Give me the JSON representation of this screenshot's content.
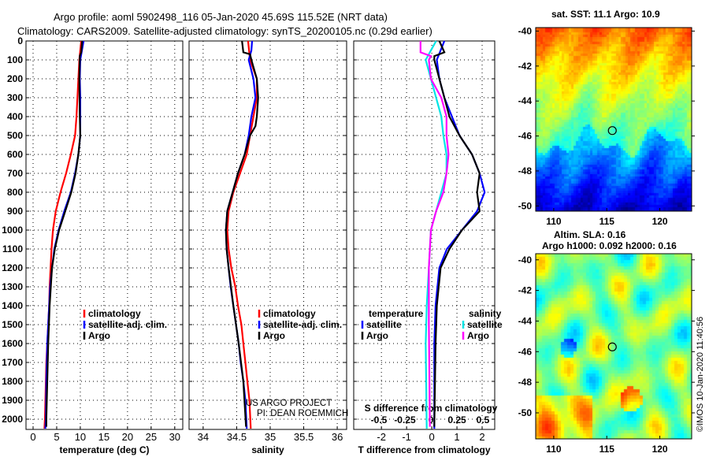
{
  "title_line1": "Argo profile: aoml 5902498_116 05-Jan-2020 45.69S 115.52E (NRT data)",
  "title_line2": "Climatology: CARS2009. Satellite-adjusted climatology: synTS_20200105.nc (0.29d earlier)",
  "credit1": "US ARGO PROJECT",
  "credit2": "PI: DEAN ROEMMICH",
  "watermark": "©IMOS 10-Jan-2020 11:40:56",
  "colors": {
    "climatology": "#ff0000",
    "satellite": "#0000ff",
    "argo": "#000000",
    "sal_satellite": "#00e5e5",
    "sal_argo": "#ff00ff"
  },
  "chart_data": [
    {
      "type": "line",
      "name": "temperature",
      "xlabel": "temperature (deg C)",
      "xlim": [
        -1.5,
        31.7
      ],
      "ylim": [
        0,
        2130
      ],
      "y_reversed": true,
      "xticks": [
        0,
        5,
        10,
        15,
        20,
        25,
        30
      ],
      "yticks": [
        0,
        100,
        200,
        300,
        400,
        500,
        600,
        700,
        800,
        900,
        1000,
        1100,
        1200,
        1300,
        1400,
        1500,
        1600,
        1700,
        1800,
        1900,
        2000
      ],
      "legend": [
        "climatology",
        "satellite-adj. clim.",
        "Argo"
      ],
      "series": [
        {
          "name": "climatology",
          "color": "#ff0000",
          "depth": [
            0,
            100,
            200,
            300,
            400,
            500,
            600,
            700,
            800,
            900,
            1000,
            1100,
            1200,
            1300,
            1400,
            1500,
            1600,
            1700,
            1800,
            1900,
            2000,
            2050
          ],
          "values": [
            10.2,
            9.8,
            9.6,
            9.4,
            9.2,
            8.9,
            8.0,
            7.0,
            5.8,
            4.8,
            4.2,
            3.9,
            3.7,
            3.5,
            3.4,
            3.2,
            3.0,
            2.8,
            2.7,
            2.6,
            2.5,
            2.4
          ]
        },
        {
          "name": "satellite-adj. clim.",
          "color": "#0000ff",
          "depth": [
            0,
            100,
            200,
            300,
            400,
            500,
            600,
            700,
            800,
            900,
            1000,
            1100,
            1200,
            1300,
            1400,
            1500,
            1600,
            1800,
            2000,
            2050
          ],
          "values": [
            10.7,
            10.0,
            9.9,
            10.0,
            10.0,
            10.0,
            9.6,
            8.9,
            8.0,
            6.6,
            5.4,
            4.5,
            4.0,
            3.6,
            3.4,
            3.2,
            3.0,
            2.8,
            2.7,
            2.6
          ]
        },
        {
          "name": "Argo",
          "color": "#000000",
          "depth": [
            0,
            60,
            80,
            100,
            200,
            400,
            500,
            600,
            700,
            800,
            900,
            1000,
            1100,
            1200,
            1400,
            1600,
            1800,
            2000,
            2040
          ],
          "values": [
            10.4,
            10.2,
            9.9,
            9.9,
            9.8,
            9.9,
            10.0,
            9.6,
            9.0,
            8.1,
            6.8,
            5.5,
            4.6,
            4.0,
            3.5,
            3.2,
            3.0,
            2.8,
            2.8
          ]
        }
      ]
    },
    {
      "type": "line",
      "name": "salinity",
      "xlabel": "salinity",
      "xlim": [
        33.79,
        36.14
      ],
      "ylim": [
        0,
        2130
      ],
      "y_reversed": true,
      "xticks": [
        34,
        34.5,
        35,
        35.5,
        36
      ],
      "legend": [
        "climatology",
        "satellite-adj. clim.",
        "Argo"
      ],
      "series": [
        {
          "name": "climatology",
          "color": "#ff0000",
          "depth": [
            0,
            100,
            200,
            300,
            400,
            500,
            600,
            700,
            800,
            900,
            1000,
            1100,
            1200,
            1300,
            1400,
            1500,
            1600,
            1700,
            1800,
            1900,
            2050
          ],
          "values": [
            34.67,
            34.7,
            34.8,
            34.8,
            34.75,
            34.7,
            34.65,
            34.55,
            34.45,
            34.38,
            34.36,
            34.38,
            34.42,
            34.48,
            34.52,
            34.57,
            34.6,
            34.63,
            34.66,
            34.69,
            34.71
          ]
        },
        {
          "name": "satellite-adj. clim.",
          "color": "#0000ff",
          "depth": [
            0,
            50,
            100,
            200,
            300,
            400,
            500,
            600,
            700,
            800,
            900,
            1000,
            1100,
            1200,
            1300,
            1400,
            1500,
            1600,
            1700,
            1800,
            1900,
            2050
          ],
          "values": [
            34.73,
            34.72,
            34.68,
            34.75,
            34.78,
            34.72,
            34.68,
            34.62,
            34.52,
            34.44,
            34.36,
            34.34,
            34.35,
            34.38,
            34.41,
            34.45,
            34.49,
            34.53,
            34.56,
            34.6,
            34.63,
            34.65
          ]
        },
        {
          "name": "Argo",
          "color": "#000000",
          "depth": [
            0,
            60,
            70,
            100,
            200,
            300,
            400,
            450,
            500,
            600,
            700,
            800,
            900,
            1000,
            1100,
            1200,
            1400,
            1600,
            1800,
            2040
          ],
          "values": [
            34.58,
            34.6,
            34.7,
            34.72,
            34.8,
            34.82,
            34.8,
            34.78,
            34.7,
            34.62,
            34.52,
            34.44,
            34.36,
            34.34,
            34.35,
            34.38,
            34.45,
            34.53,
            34.6,
            34.64
          ]
        }
      ]
    },
    {
      "type": "line",
      "name": "difference",
      "xlabel": "T difference from climatology",
      "xlabel2": "S difference from climatology",
      "xlim": [
        -3.1,
        2.5
      ],
      "xticks": [
        -2,
        -1,
        0,
        1,
        2
      ],
      "s_xticks": [
        -0.5,
        -0.25,
        0,
        0.25,
        0.5
      ],
      "s_xticklabels": [
        "-0.5",
        "-0.25",
        "0",
        "0.25",
        "0.5"
      ],
      "legend_t": {
        "title": "temperature",
        "items": [
          "satellite",
          "Argo"
        ]
      },
      "legend_s": {
        "title": "salinity",
        "items": [
          "satellite",
          "Argo"
        ]
      },
      "series": [
        {
          "name": "T satellite",
          "color": "#0000ff",
          "units": "T",
          "depth": [
            0,
            100,
            200,
            300,
            400,
            500,
            600,
            700,
            800,
            900,
            1000,
            1100,
            1200,
            1400,
            1600,
            2050
          ],
          "values": [
            0.5,
            0.2,
            0.3,
            0.5,
            0.8,
            1.1,
            1.6,
            1.9,
            2.1,
            1.8,
            1.2,
            0.6,
            0.3,
            0.15,
            0.1,
            0.1
          ]
        },
        {
          "name": "T Argo",
          "color": "#000000",
          "units": "T",
          "depth": [
            0,
            60,
            80,
            100,
            200,
            300,
            400,
            500,
            600,
            700,
            800,
            900,
            1000,
            1100,
            1200,
            1400,
            1600,
            2040
          ],
          "values": [
            0.3,
            0.5,
            0.1,
            0.1,
            0.3,
            0.5,
            0.7,
            1.1,
            1.6,
            1.9,
            1.8,
            1.9,
            1.2,
            0.7,
            0.35,
            0.2,
            0.15,
            0.1
          ]
        },
        {
          "name": "S satellite",
          "color": "#00e5e5",
          "units": "S",
          "depth": [
            0,
            100,
            200,
            300,
            400,
            500,
            600,
            700,
            800,
            900,
            1000,
            1200,
            1400,
            1600,
            2050
          ],
          "values": [
            0.05,
            -0.05,
            0.0,
            0.05,
            0.1,
            0.12,
            0.15,
            0.15,
            0.1,
            0.05,
            0.0,
            -0.02,
            -0.04,
            -0.05,
            -0.04
          ]
        },
        {
          "name": "S Argo",
          "color": "#ff00ff",
          "units": "S",
          "depth": [
            0,
            60,
            80,
            100,
            200,
            300,
            400,
            500,
            600,
            700,
            800,
            900,
            1000,
            1200,
            1500,
            2040
          ],
          "values": [
            -0.1,
            -0.1,
            0.0,
            -0.02,
            0.0,
            0.1,
            0.15,
            0.15,
            0.17,
            0.15,
            0.12,
            0.05,
            0.0,
            -0.02,
            -0.02,
            -0.01
          ]
        }
      ]
    },
    {
      "type": "heatmap",
      "name": "sst-map",
      "title": "sat. SST: 11.1 Argo: 10.9",
      "xlim": [
        108.3,
        123
      ],
      "ylim": [
        -50.3,
        -39.8
      ],
      "xticks": [
        110,
        115,
        120
      ],
      "yticks": [
        -40,
        -42,
        -44,
        -46,
        -48,
        -50
      ],
      "marker": {
        "lon": 115.52,
        "lat": -45.69
      }
    },
    {
      "type": "heatmap",
      "name": "sla-map",
      "title": "Altim. SLA: 0.16",
      "subtitle": "Argo h1000: 0.092 h2000: 0.16",
      "xlim": [
        108.3,
        123
      ],
      "ylim": [
        -51.7,
        -39.6
      ],
      "xticks": [
        110,
        115,
        120
      ],
      "yticks": [
        -40,
        -42,
        -44,
        -46,
        -48,
        -50
      ],
      "marker": {
        "lon": 115.52,
        "lat": -45.69
      }
    }
  ]
}
